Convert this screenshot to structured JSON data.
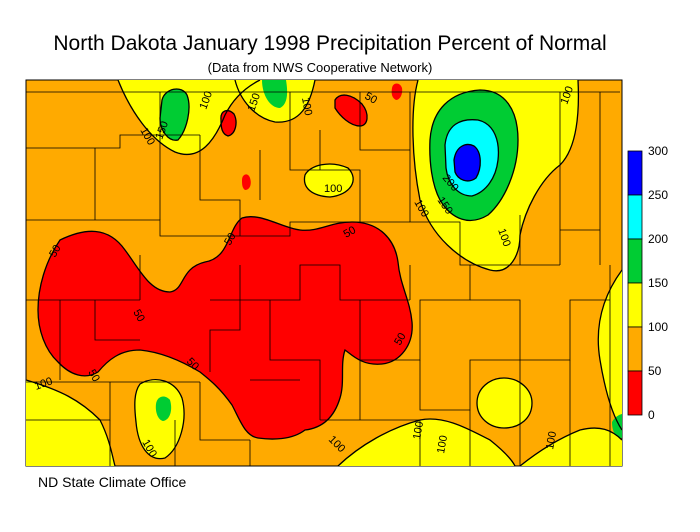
{
  "title": "North Dakota January 1998 Precipitation Percent of Normal",
  "subtitle": "(Data from NWS Cooperative Network)",
  "footer": "ND State Climate Office",
  "legend": {
    "ticks": [
      "300",
      "250",
      "200",
      "150",
      "100",
      "50",
      "0"
    ],
    "bins": [
      {
        "range": "250-300",
        "color": "#0000ff"
      },
      {
        "range": "200-250",
        "color": "#00ffff"
      },
      {
        "range": "150-200",
        "color": "#00cc33"
      },
      {
        "range": "100-150",
        "color": "#ffff00"
      },
      {
        "range": "50-100",
        "color": "#ffaa00"
      },
      {
        "range": "0-50",
        "color": "#ff0000"
      }
    ]
  },
  "contour_labels": [
    "100",
    "150",
    "100",
    "150",
    "100",
    "50",
    "100",
    "100",
    "200",
    "150",
    "100",
    "100",
    "50",
    "50",
    "50",
    "50",
    "50",
    "50",
    "50",
    "100",
    "100",
    "100",
    "100",
    "100",
    "100"
  ],
  "colors": {
    "background": "#ffaa00",
    "below_50": "#ff0000",
    "between_100_150": "#ffff00",
    "between_150_200": "#00cc33",
    "between_200_250": "#00ffff",
    "above_250": "#0000ff"
  }
}
